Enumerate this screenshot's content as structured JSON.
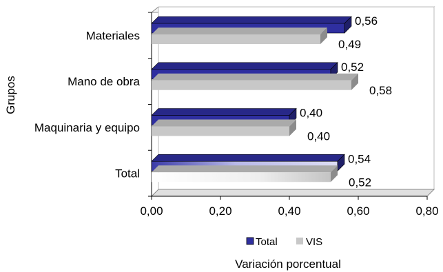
{
  "chart_data": {
    "type": "bar",
    "orientation": "horizontal",
    "style": "3d",
    "categories": [
      "Materiales",
      "Mano de obra",
      "Maquinaria y equipo",
      "Total"
    ],
    "series": [
      {
        "name": "Total",
        "values": [
          0.56,
          0.52,
          0.4,
          0.54
        ],
        "labels": [
          "0,56",
          "0,52",
          "0,40",
          "0,54"
        ],
        "color": "#2f2fa0"
      },
      {
        "name": "VIS",
        "values": [
          0.49,
          0.58,
          0.4,
          0.52
        ],
        "labels": [
          "0,49",
          "0,58",
          "0,40",
          "0,52"
        ],
        "color": "#c8c8c8"
      }
    ],
    "xlabel": "Variación porcentual",
    "ylabel": "Grupos",
    "xlim": [
      0,
      0.8
    ],
    "xticks": [
      "0,00",
      "0,20",
      "0,40",
      "0,60",
      "0,80"
    ],
    "legend_position": "bottom",
    "grid": false
  }
}
